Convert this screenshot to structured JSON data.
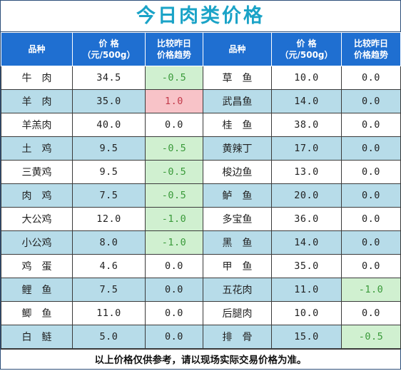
{
  "title": "今日肉类价格",
  "headers": {
    "name": "品种",
    "price_line1": "价    格",
    "price_line2": "（元/500g）",
    "trend_line1": "比较昨日",
    "trend_line2": "价格趋势"
  },
  "rows": [
    {
      "left": {
        "name": "牛　肉",
        "price": "34.5",
        "trend": "-0.5",
        "trend_state": "down"
      },
      "right": {
        "name": "草　鱼",
        "price": "10.0",
        "trend": "0.0",
        "trend_state": "flat"
      }
    },
    {
      "left": {
        "name": "羊　肉",
        "price": "35.0",
        "trend": "1.0",
        "trend_state": "up"
      },
      "right": {
        "name": "武昌鱼",
        "price": "14.0",
        "trend": "0.0",
        "trend_state": "flat"
      }
    },
    {
      "left": {
        "name": "羊羔肉",
        "price": "40.0",
        "trend": "0.0",
        "trend_state": "flat"
      },
      "right": {
        "name": "桂　鱼",
        "price": "38.0",
        "trend": "0.0",
        "trend_state": "flat"
      }
    },
    {
      "left": {
        "name": "土　鸡",
        "price": "9.5",
        "trend": "-0.5",
        "trend_state": "down"
      },
      "right": {
        "name": "黄辣丁",
        "price": "17.0",
        "trend": "0.0",
        "trend_state": "flat"
      }
    },
    {
      "left": {
        "name": "三黄鸡",
        "price": "9.5",
        "trend": "-0.5",
        "trend_state": "down"
      },
      "right": {
        "name": "梭边鱼",
        "price": "13.0",
        "trend": "0.0",
        "trend_state": "flat"
      }
    },
    {
      "left": {
        "name": "肉　鸡",
        "price": "7.5",
        "trend": "-0.5",
        "trend_state": "down"
      },
      "right": {
        "name": "鲈　鱼",
        "price": "20.0",
        "trend": "0.0",
        "trend_state": "flat"
      }
    },
    {
      "left": {
        "name": "大公鸡",
        "price": "12.0",
        "trend": "-1.0",
        "trend_state": "down"
      },
      "right": {
        "name": "多宝鱼",
        "price": "36.0",
        "trend": "0.0",
        "trend_state": "flat"
      }
    },
    {
      "left": {
        "name": "小公鸡",
        "price": "8.0",
        "trend": "-1.0",
        "trend_state": "down"
      },
      "right": {
        "name": "黑　鱼",
        "price": "14.0",
        "trend": "0.0",
        "trend_state": "flat"
      }
    },
    {
      "left": {
        "name": "鸡　蛋",
        "price": "4.6",
        "trend": "0.0",
        "trend_state": "flat"
      },
      "right": {
        "name": "甲　鱼",
        "price": "35.0",
        "trend": "0.0",
        "trend_state": "flat"
      }
    },
    {
      "left": {
        "name": "鲤　鱼",
        "price": "7.5",
        "trend": "0.0",
        "trend_state": "flat"
      },
      "right": {
        "name": "五花肉",
        "price": "11.0",
        "trend": "-1.0",
        "trend_state": "down"
      }
    },
    {
      "left": {
        "name": "鲫　鱼",
        "price": "11.0",
        "trend": "0.0",
        "trend_state": "flat"
      },
      "right": {
        "name": "后腿肉",
        "price": "10.0",
        "trend": "0.0",
        "trend_state": "flat"
      }
    },
    {
      "left": {
        "name": "白　鲢",
        "price": "5.0",
        "trend": "0.0",
        "trend_state": "flat"
      },
      "right": {
        "name": "排　骨",
        "price": "15.0",
        "trend": "-0.5",
        "trend_state": "down"
      }
    }
  ],
  "footer": "以上价格仅供参考，请以现场实际交易价格为准。",
  "colors": {
    "title": "#1aa3c7",
    "header_bg": "#1f6fd1",
    "alt_row_bg": "#b7dce9",
    "down_bg": "#d0f0d0",
    "up_bg": "#f8c3c8"
  }
}
